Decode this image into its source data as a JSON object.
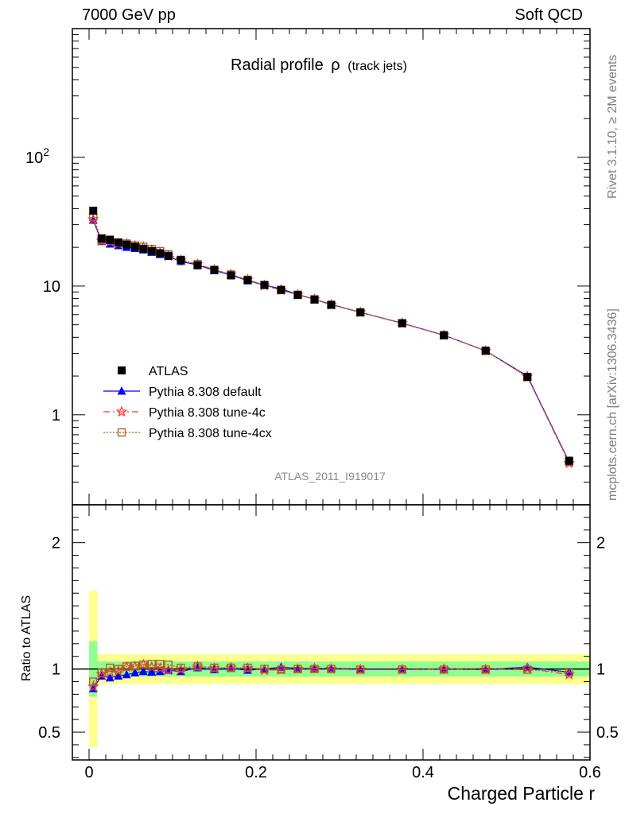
{
  "header": {
    "energy_label": "7000 GeV pp",
    "category_label": "Soft QCD"
  },
  "side": {
    "rivet_label": "Rivet 3.1.10, ≥ 2M events",
    "source_label": "mcplots.cern.ch [arXiv:1306.3436]"
  },
  "chart_data": {
    "type": "line",
    "title": "Radial profile",
    "title_symbol": "ρ",
    "title_suffix": "(track jets)",
    "watermark": "ATLAS_2011_I919017",
    "xlabel": "Charged Particle r",
    "ylabel_main": "",
    "ylabel_ratio": "Ratio to ATLAS",
    "xlim": [
      -0.02,
      0.6
    ],
    "xticks": [
      0,
      0.2,
      0.4,
      0.6
    ],
    "xtick_labels": [
      "0",
      "0.2",
      "0.4",
      "0.6"
    ],
    "main_ylim": [
      0.2,
      1000
    ],
    "main_yscale": "log",
    "main_yticks": [
      {
        "value": 1,
        "label": "1",
        "sup": ""
      },
      {
        "value": 10,
        "label": "10",
        "sup": ""
      },
      {
        "value": 100,
        "label": "10",
        "sup": "2"
      }
    ],
    "ratio_ylim": [
      0.28,
      2.3
    ],
    "ratio_yticks": [
      0.5,
      1,
      2
    ],
    "ratio_ytick_labels": [
      "0.5",
      "1",
      "2"
    ],
    "legend_position": "bottom-left",
    "x": [
      0.005,
      0.015,
      0.025,
      0.035,
      0.045,
      0.055,
      0.065,
      0.075,
      0.085,
      0.095,
      0.11,
      0.13,
      0.15,
      0.17,
      0.19,
      0.21,
      0.23,
      0.25,
      0.27,
      0.29,
      0.325,
      0.375,
      0.425,
      0.475,
      0.525,
      0.575
    ],
    "series": [
      {
        "name": "ATLAS",
        "color": "#000000",
        "marker": "square",
        "values": [
          38.5,
          23.5,
          22.8,
          21.8,
          21.0,
          20.2,
          19.5,
          18.7,
          18.0,
          17.2,
          15.9,
          14.5,
          13.3,
          12.1,
          11.1,
          10.2,
          9.35,
          8.55,
          7.85,
          7.15,
          6.25,
          5.15,
          4.15,
          3.15,
          1.97,
          0.44
        ]
      },
      {
        "name": "Pythia 8.308 default",
        "color": "#0000ff",
        "marker": "triangle",
        "values": [
          32.5,
          22.2,
          21.2,
          20.6,
          20.0,
          19.6,
          19.1,
          18.3,
          17.6,
          17.0,
          15.5,
          14.6,
          13.2,
          12.2,
          11.0,
          10.2,
          9.5,
          8.6,
          7.9,
          7.2,
          6.25,
          5.15,
          4.15,
          3.14,
          2.0,
          0.43
        ]
      },
      {
        "name": "Pythia 8.308 tune-4c",
        "color": "#ff3333",
        "marker": "star",
        "values": [
          33.0,
          22.5,
          22.2,
          21.4,
          21.3,
          20.6,
          20.1,
          19.0,
          18.1,
          17.1,
          15.8,
          14.8,
          13.4,
          12.3,
          11.2,
          10.1,
          9.3,
          8.55,
          7.9,
          7.15,
          6.25,
          5.15,
          4.15,
          3.14,
          1.98,
          0.42
        ]
      },
      {
        "name": "Pythia 8.308 tune-4cx",
        "color": "#b05a1e",
        "marker": "open-square",
        "values": [
          34.5,
          22.7,
          23.0,
          21.8,
          21.4,
          20.7,
          20.2,
          19.4,
          18.7,
          17.7,
          16.0,
          14.8,
          13.4,
          12.3,
          11.2,
          10.2,
          9.3,
          8.55,
          7.9,
          7.15,
          6.25,
          5.15,
          4.15,
          3.14,
          1.96,
          0.43
        ]
      }
    ],
    "ratio_series": [
      {
        "name": "Pythia 8.308 default",
        "values": [
          0.845,
          0.945,
          0.93,
          0.945,
          0.955,
          0.97,
          0.98,
          0.975,
          0.98,
          0.99,
          0.98,
          1.01,
          0.995,
          1.005,
          0.99,
          1.0,
          1.015,
          1.005,
          1.005,
          1.005,
          1.0,
          1.0,
          1.0,
          0.995,
          1.015,
          0.975
        ]
      },
      {
        "name": "Pythia 8.308 tune-4c",
        "values": [
          0.86,
          0.96,
          0.975,
          0.985,
          1.015,
          1.02,
          1.035,
          1.015,
          1.005,
          0.99,
          0.995,
          1.02,
          1.005,
          1.01,
          1.005,
          0.99,
          0.995,
          1.0,
          1.005,
          1.0,
          0.995,
          0.995,
          1.0,
          0.995,
          1.005,
          0.955
        ]
      },
      {
        "name": "Pythia 8.308 tune-4cx",
        "values": [
          0.9,
          0.97,
          1.01,
          1.0,
          1.02,
          1.025,
          1.035,
          1.04,
          1.04,
          1.035,
          1.01,
          1.02,
          1.01,
          1.01,
          1.01,
          1.0,
          0.995,
          1.0,
          1.0,
          1.0,
          0.995,
          0.995,
          0.995,
          0.995,
          0.995,
          0.975
        ]
      }
    ],
    "ratio_bands": {
      "inner_color": "#90ff90",
      "outer_color": "#ffff90",
      "edges": [
        0.0,
        0.01,
        0.02,
        0.06,
        0.1,
        0.12,
        0.2,
        0.35,
        0.45,
        0.55,
        0.6
      ],
      "inner_halfwidth": [
        0.22,
        0.06,
        0.06,
        0.06,
        0.06,
        0.06,
        0.06,
        0.06,
        0.06,
        0.06
      ],
      "outer_halfwidth": [
        0.62,
        0.12,
        0.12,
        0.12,
        0.12,
        0.12,
        0.12,
        0.12,
        0.12,
        0.12
      ]
    }
  }
}
